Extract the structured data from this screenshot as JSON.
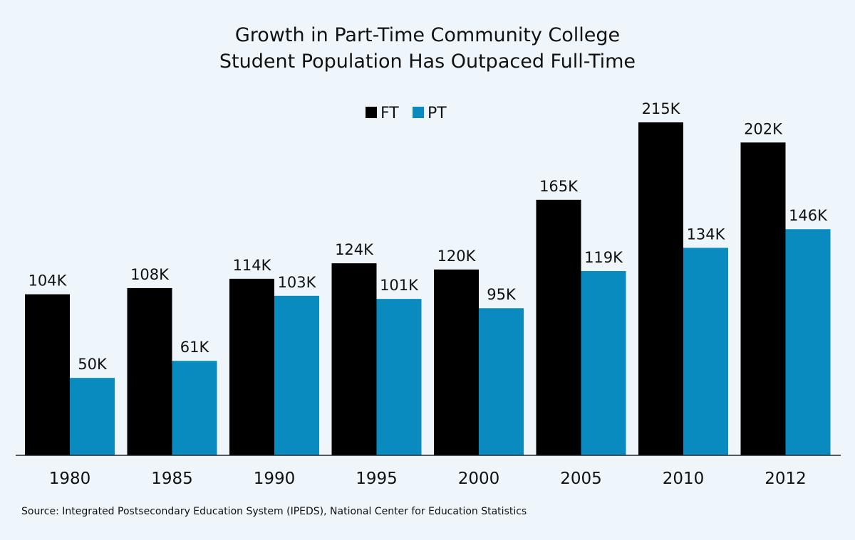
{
  "chart_data": {
    "type": "bar",
    "title": "Growth in Part-Time Community College Student Population Has Outpaced Full-Time",
    "title_lines": [
      "Growth in Part-Time Community College",
      "Student Population Has Outpaced Full-Time"
    ],
    "categories": [
      "1980",
      "1985",
      "1990",
      "1995",
      "2000",
      "2005",
      "2010",
      "2012"
    ],
    "series": [
      {
        "name": "FT",
        "color": "#000000",
        "values": [
          104,
          108,
          114,
          124,
          120,
          165,
          215,
          202
        ],
        "labels": [
          "104K",
          "108K",
          "114K",
          "124K",
          "120K",
          "165K",
          "215K",
          "202K"
        ]
      },
      {
        "name": "PT",
        "color": "#0a8bbf",
        "values": [
          50,
          61,
          103,
          101,
          95,
          119,
          134,
          146
        ],
        "labels": [
          "50K",
          "61K",
          "103K",
          "101K",
          "95K",
          "119K",
          "134K",
          "146K"
        ]
      }
    ],
    "unit": "thousands of students",
    "xlabel": "",
    "ylabel": "",
    "ylim": [
      0,
      215
    ],
    "grid": false,
    "legend": "top-center"
  },
  "source_note": "Source: Integrated Postsecondary Education System (IPEDS), National Center for Education Statistics",
  "colors": {
    "background": "#eef6fb",
    "axis": "#222222"
  }
}
